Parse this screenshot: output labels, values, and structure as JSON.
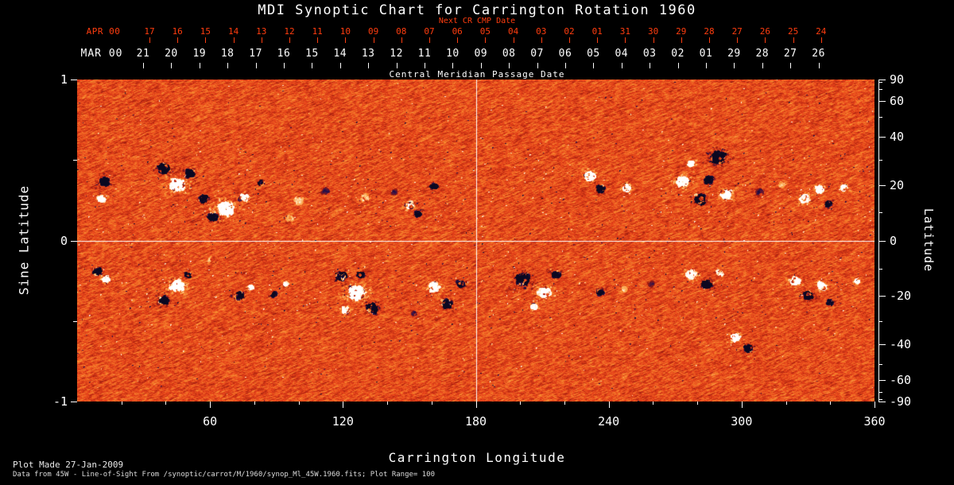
{
  "title": "MDI Synoptic Chart for Carrington Rotation 1960",
  "footer": {
    "line1": "Plot Made 27-Jan-2009",
    "line2": "Data from 45W - Line-of-Sight From /synoptic/carrot/M/1960/synop_Ml_45W.1960.fits; Plot Range=  100"
  },
  "chart_data": {
    "type": "heatmap",
    "title": "MDI Synoptic Chart for Carrington Rotation 1960",
    "xlabel": "Carrington Longitude",
    "ylabel_left": "Sine Latitude",
    "ylabel_right": "Latitude",
    "xlim": [
      0,
      360
    ],
    "ylim_sine": [
      -1,
      1
    ],
    "x_ticks": [
      60,
      120,
      180,
      240,
      300,
      360
    ],
    "left_ticks": [
      1,
      0,
      -1
    ],
    "right_ticks": [
      90,
      60,
      40,
      20,
      0,
      -20,
      -40,
      -60,
      -90
    ],
    "right_minor_ticks": [
      80,
      70,
      50,
      30,
      10,
      -10,
      -30,
      -50,
      -70,
      -80
    ],
    "grid_lines": {
      "x_longitude": 180,
      "y_sine_latitude": 0
    },
    "top_axis": {
      "label": "Central Meridian Passage Date",
      "next_cr_label": "Next CR CMP Date",
      "row_next": {
        "prefix": "APR 00",
        "days": [
          "17",
          "16",
          "15",
          "14",
          "13",
          "12",
          "11",
          "10",
          "09",
          "08",
          "07",
          "06",
          "05",
          "04",
          "03",
          "02",
          "01",
          "31",
          "30",
          "29",
          "28",
          "27",
          "26",
          "25",
          "24"
        ]
      },
      "row_current": {
        "prefix": "MAR 00",
        "days": [
          "21",
          "20",
          "19",
          "18",
          "17",
          "16",
          "15",
          "14",
          "13",
          "12",
          "11",
          "10",
          "09",
          "08",
          "07",
          "06",
          "05",
          "04",
          "03",
          "02",
          "01",
          "29",
          "28",
          "27",
          "26"
        ]
      }
    },
    "colors": {
      "background": "#000000",
      "foreground": "#ffffff",
      "date_axis": "#ff3d0f",
      "grid": "#ffffff",
      "palette": {
        "neg_strong": "#0a0820",
        "neg_mid": "#2c1250",
        "neg_weak": "#9e1c0e",
        "zero": "#e8431a",
        "pos_weak": "#f89030",
        "pos_mid": "#ffe2b0",
        "pos_strong": "#ffffff"
      }
    },
    "plot_range_gauss": 100,
    "active_regions_lon_slat_radius_strength": [
      [
        12,
        0.37,
        7,
        -0.95
      ],
      [
        11,
        0.26,
        5,
        0.85
      ],
      [
        39,
        0.45,
        9,
        -0.95
      ],
      [
        45,
        0.35,
        11,
        0.9
      ],
      [
        51,
        0.42,
        7,
        -0.9
      ],
      [
        57,
        0.26,
        6,
        -0.85
      ],
      [
        61,
        0.15,
        7,
        -0.9
      ],
      [
        67,
        0.2,
        12,
        0.92
      ],
      [
        75,
        0.27,
        6,
        0.85
      ],
      [
        83,
        0.36,
        4,
        -0.85
      ],
      [
        96,
        0.14,
        5,
        0.35
      ],
      [
        100,
        0.25,
        6,
        0.4
      ],
      [
        112,
        0.31,
        5,
        -0.35
      ],
      [
        130,
        0.27,
        6,
        0.38
      ],
      [
        143,
        0.3,
        4,
        -0.35
      ],
      [
        150,
        0.22,
        6,
        0.85
      ],
      [
        154,
        0.17,
        5,
        -0.85
      ],
      [
        161,
        0.34,
        5,
        -0.85
      ],
      [
        231,
        0.4,
        8,
        0.9
      ],
      [
        236,
        0.32,
        6,
        -0.9
      ],
      [
        248,
        0.33,
        6,
        0.88
      ],
      [
        273,
        0.37,
        9,
        0.9
      ],
      [
        277,
        0.48,
        5,
        0.85
      ],
      [
        281,
        0.26,
        8,
        -0.92
      ],
      [
        285,
        0.38,
        6,
        -0.9
      ],
      [
        289,
        0.52,
        11,
        -0.95
      ],
      [
        293,
        0.29,
        8,
        0.9
      ],
      [
        308,
        0.3,
        5,
        -0.4
      ],
      [
        318,
        0.35,
        4,
        0.35
      ],
      [
        328,
        0.26,
        7,
        0.88
      ],
      [
        335,
        0.32,
        6,
        0.88
      ],
      [
        339,
        0.23,
        5,
        -0.85
      ],
      [
        346,
        0.33,
        5,
        0.85
      ],
      [
        9,
        -0.19,
        6,
        -0.9
      ],
      [
        13,
        -0.24,
        5,
        0.85
      ],
      [
        39,
        -0.37,
        7,
        -0.9
      ],
      [
        45,
        -0.28,
        10,
        0.92
      ],
      [
        50,
        -0.21,
        5,
        -0.85
      ],
      [
        60,
        -0.12,
        4,
        0.35
      ],
      [
        73,
        -0.34,
        6,
        -0.85
      ],
      [
        78,
        -0.29,
        4,
        0.8
      ],
      [
        89,
        -0.33,
        4,
        -0.8
      ],
      [
        94,
        -0.27,
        3,
        0.75
      ],
      [
        119,
        -0.22,
        8,
        -0.92
      ],
      [
        126,
        -0.32,
        12,
        0.95
      ],
      [
        133,
        -0.42,
        8,
        -0.9
      ],
      [
        128,
        -0.21,
        5,
        -0.85
      ],
      [
        121,
        -0.43,
        5,
        0.85
      ],
      [
        152,
        -0.45,
        4,
        -0.35
      ],
      [
        161,
        -0.29,
        8,
        0.9
      ],
      [
        167,
        -0.39,
        8,
        -0.92
      ],
      [
        173,
        -0.27,
        5,
        -0.85
      ],
      [
        201,
        -0.24,
        11,
        -0.95
      ],
      [
        211,
        -0.32,
        9,
        0.9
      ],
      [
        216,
        -0.21,
        6,
        -0.88
      ],
      [
        206,
        -0.41,
        5,
        0.85
      ],
      [
        236,
        -0.32,
        5,
        -0.85
      ],
      [
        247,
        -0.3,
        4,
        0.35
      ],
      [
        259,
        -0.27,
        4,
        -0.35
      ],
      [
        277,
        -0.21,
        7,
        0.88
      ],
      [
        284,
        -0.27,
        7,
        -0.9
      ],
      [
        290,
        -0.2,
        4,
        0.8
      ],
      [
        297,
        -0.6,
        7,
        0.88
      ],
      [
        303,
        -0.67,
        6,
        -0.88
      ],
      [
        324,
        -0.25,
        7,
        0.88
      ],
      [
        330,
        -0.34,
        7,
        -0.9
      ],
      [
        336,
        -0.28,
        6,
        0.86
      ],
      [
        340,
        -0.38,
        4,
        -0.8
      ],
      [
        352,
        -0.25,
        4,
        0.8
      ]
    ]
  }
}
